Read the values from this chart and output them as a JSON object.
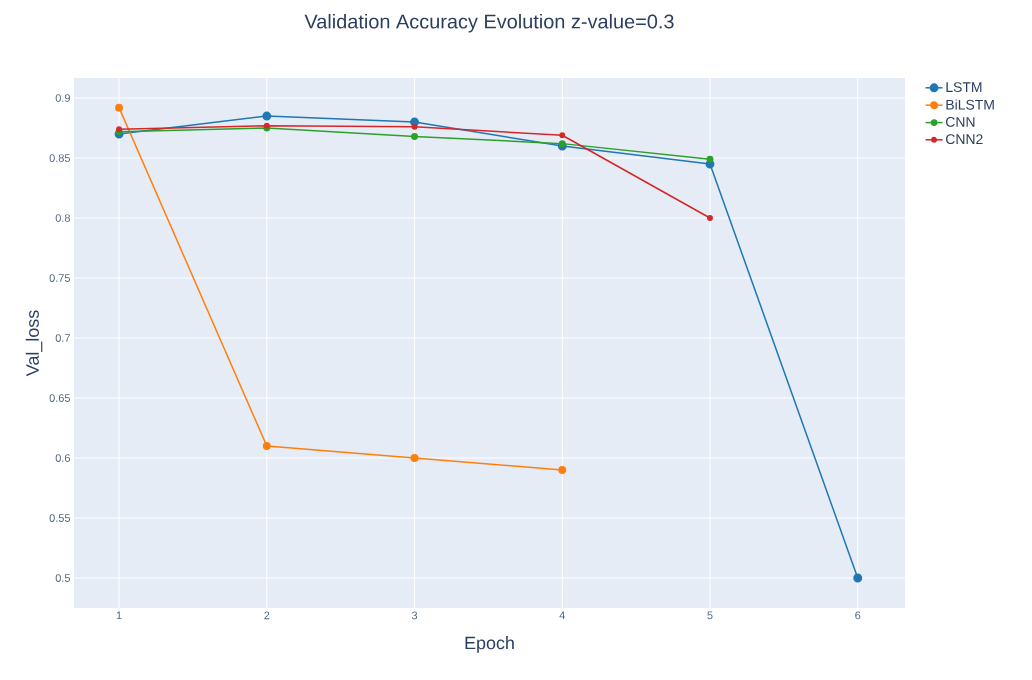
{
  "chart_data": {
    "type": "line",
    "title": "Validation Accuracy Evolution z-value=0.3",
    "xlabel": "Epoch",
    "ylabel": "Val_loss",
    "series": [
      {
        "name": "LSTM",
        "color": "#1f77b4",
        "x": [
          1,
          2,
          3,
          4,
          5,
          6
        ],
        "values": [
          0.87,
          0.885,
          0.88,
          0.86,
          0.845,
          0.5
        ]
      },
      {
        "name": "BiLSTM",
        "color": "#ff7f0e",
        "x": [
          1,
          2,
          3,
          4
        ],
        "values": [
          0.892,
          0.61,
          0.6,
          0.59
        ]
      },
      {
        "name": "CNN",
        "color": "#2ca02c",
        "x": [
          1,
          2,
          3,
          4,
          5
        ],
        "values": [
          0.872,
          0.875,
          0.868,
          0.862,
          0.849
        ]
      },
      {
        "name": "CNN2",
        "color": "#d62728",
        "x": [
          1,
          2,
          3,
          4,
          5
        ],
        "values": [
          0.874,
          0.877,
          0.876,
          0.869,
          0.8
        ]
      }
    ],
    "xlim": [
      0.695,
      6.32
    ],
    "ylim": [
      0.475,
      0.9167
    ],
    "xticks": [
      1,
      2,
      3,
      4,
      5,
      6
    ],
    "yticks": [
      0.5,
      0.55,
      0.6,
      0.65,
      0.7,
      0.75,
      0.8,
      0.85,
      0.9
    ],
    "grid": true,
    "legend": "top right",
    "marker": "circle",
    "line_style": "solid"
  }
}
